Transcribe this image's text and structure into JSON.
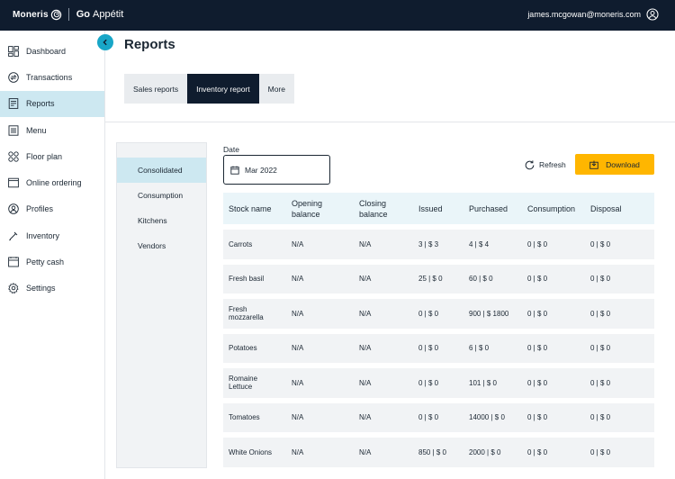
{
  "brand": {
    "name": "Moneris",
    "product_bold": "Go",
    "product_rest": "Appétit"
  },
  "user": {
    "email": "james.mcgowan@moneris.com"
  },
  "sidebar": {
    "items": [
      {
        "label": "Dashboard",
        "icon": "dashboard-icon"
      },
      {
        "label": "Transactions",
        "icon": "transactions-icon"
      },
      {
        "label": "Reports",
        "icon": "reports-icon",
        "active": true
      },
      {
        "label": "Menu",
        "icon": "menu-icon"
      },
      {
        "label": "Floor plan",
        "icon": "floor-plan-icon"
      },
      {
        "label": "Online ordering",
        "icon": "online-ordering-icon"
      },
      {
        "label": "Profiles",
        "icon": "profiles-icon"
      },
      {
        "label": "Inventory",
        "icon": "inventory-icon"
      },
      {
        "label": "Petty cash",
        "icon": "petty-cash-icon"
      },
      {
        "label": "Settings",
        "icon": "settings-icon"
      }
    ]
  },
  "page": {
    "title": "Reports"
  },
  "tabs": [
    {
      "label": "Sales reports"
    },
    {
      "label": "Inventory report",
      "active": true
    },
    {
      "label": "More"
    }
  ],
  "subnav": {
    "items": [
      {
        "label": "Consolidated",
        "active": true
      },
      {
        "label": "Consumption"
      },
      {
        "label": "Kitchens"
      },
      {
        "label": "Vendors"
      }
    ]
  },
  "filters": {
    "date_label": "Date",
    "date_value": "Mar 2022"
  },
  "actions": {
    "refresh": "Refresh",
    "download": "Download"
  },
  "colors": {
    "topbar": "#0f1c2e",
    "accent": "#18a6c7",
    "active_bg": "#cde8f1",
    "download": "#ffb600"
  },
  "table": {
    "headers": [
      "Stock name",
      "Opening balance",
      "Closing balance",
      "Issued",
      "Purchased",
      "Consumption",
      "Disposal"
    ],
    "rows": [
      [
        "Carrots",
        "N/A",
        "N/A",
        "3 | $ 3",
        "4 | $ 4",
        "0 | $ 0",
        "0 | $ 0"
      ],
      [
        "Fresh basil",
        "N/A",
        "N/A",
        "25 | $ 0",
        "60 | $ 0",
        "0 | $ 0",
        "0 | $ 0"
      ],
      [
        "Fresh mozzarella",
        "N/A",
        "N/A",
        "0 | $ 0",
        "900 | $ 1800",
        "0 | $ 0",
        "0 | $ 0"
      ],
      [
        "Potatoes",
        "N/A",
        "N/A",
        "0 | $ 0",
        "6 | $ 0",
        "0 | $ 0",
        "0 | $ 0"
      ],
      [
        "Romaine Lettuce",
        "N/A",
        "N/A",
        "0 | $ 0",
        "101 | $ 0",
        "0 | $ 0",
        "0 | $ 0"
      ],
      [
        "Tomatoes",
        "N/A",
        "N/A",
        "0 | $ 0",
        "14000 | $ 0",
        "0 | $ 0",
        "0 | $ 0"
      ],
      [
        "White Onions",
        "N/A",
        "N/A",
        "850 | $ 0",
        "2000 | $ 0",
        "0 | $ 0",
        "0 | $ 0"
      ]
    ]
  }
}
